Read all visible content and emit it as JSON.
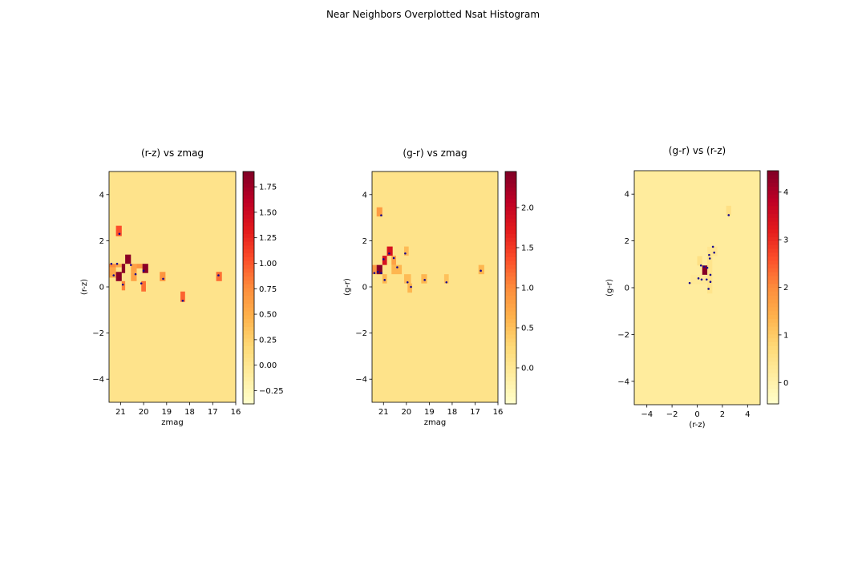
{
  "figure": {
    "suptitle": "Near Neighbors Overplotted Nsat Histogram"
  },
  "colors": {
    "colormap": [
      "#ffffcc",
      "#ffeda0",
      "#fed976",
      "#feb24c",
      "#fd8d3c",
      "#fc4e2a",
      "#e31a1c",
      "#bd0026",
      "#800026"
    ],
    "point": "#1a0a8c",
    "background_fill": "#fde79a"
  },
  "chart_data": [
    {
      "type": "heatmap",
      "title": "(r-z) vs zmag",
      "xlabel": "zmag",
      "ylabel": "(r-z)",
      "xlim": [
        21.5,
        16
      ],
      "ylim": [
        -5,
        5
      ],
      "xticks": [
        "21",
        "20",
        "19",
        "18",
        "17",
        "16"
      ],
      "xtick_values": [
        21,
        20,
        19,
        18,
        17,
        16
      ],
      "yticks": [
        "4",
        "2",
        "0",
        "−2",
        "−4"
      ],
      "ytick_values": [
        4,
        2,
        0,
        -2,
        -4
      ],
      "colorbar": {
        "range": [
          -0.38,
          1.9
        ],
        "ticks": [
          "1.75",
          "1.50",
          "1.25",
          "1.00",
          "0.75",
          "0.50",
          "0.25",
          "0.00",
          "−0.25"
        ],
        "tick_values": [
          1.75,
          1.5,
          1.25,
          1.0,
          0.75,
          0.5,
          0.25,
          0.0,
          -0.25
        ]
      },
      "background_value": 0.05,
      "cells": [
        {
          "x0": 21.2,
          "x1": 20.95,
          "y0": 2.2,
          "y1": 2.65,
          "value": 1.05
        },
        {
          "x0": 21.5,
          "x1": 21.2,
          "y0": 0.85,
          "y1": 1.0,
          "value": 0.75
        },
        {
          "x0": 21.5,
          "x1": 21.2,
          "y0": 0.4,
          "y1": 0.85,
          "value": 0.55
        },
        {
          "x0": 21.2,
          "x1": 20.95,
          "y0": 0.85,
          "y1": 1.0,
          "value": 0.55
        },
        {
          "x0": 21.2,
          "x1": 20.95,
          "y0": 0.25,
          "y1": 0.65,
          "value": 1.85
        },
        {
          "x0": 20.95,
          "x1": 20.8,
          "y0": 0.6,
          "y1": 1.0,
          "value": 1.85
        },
        {
          "x0": 20.95,
          "x1": 20.8,
          "y0": -0.15,
          "y1": 0.25,
          "value": 0.8
        },
        {
          "x0": 20.8,
          "x1": 20.55,
          "y0": 1.0,
          "y1": 1.4,
          "value": 1.85
        },
        {
          "x0": 20.55,
          "x1": 20.3,
          "y0": 0.65,
          "y1": 1.0,
          "value": 0.6
        },
        {
          "x0": 20.55,
          "x1": 20.3,
          "y0": 0.25,
          "y1": 0.65,
          "value": 0.6
        },
        {
          "x0": 20.3,
          "x1": 20.05,
          "y0": 0.8,
          "y1": 1.0,
          "value": 0.7
        },
        {
          "x0": 20.05,
          "x1": 19.8,
          "y0": 0.6,
          "y1": 1.0,
          "value": 1.85
        },
        {
          "x0": 20.1,
          "x1": 19.9,
          "y0": -0.2,
          "y1": 0.25,
          "value": 0.9
        },
        {
          "x0": 19.3,
          "x1": 19.05,
          "y0": 0.25,
          "y1": 0.65,
          "value": 0.7
        },
        {
          "x0": 18.4,
          "x1": 18.2,
          "y0": -0.65,
          "y1": -0.2,
          "value": 0.95
        },
        {
          "x0": 16.85,
          "x1": 16.6,
          "y0": 0.25,
          "y1": 0.65,
          "value": 0.9
        }
      ],
      "points": [
        {
          "x": 21.4,
          "y": 1.0
        },
        {
          "x": 21.15,
          "y": 1.0
        },
        {
          "x": 21.05,
          "y": 2.3
        },
        {
          "x": 21.3,
          "y": 0.5
        },
        {
          "x": 20.9,
          "y": 0.1
        },
        {
          "x": 20.55,
          "y": 0.95
        },
        {
          "x": 20.35,
          "y": 0.55
        },
        {
          "x": 20.0,
          "y": 0.7
        },
        {
          "x": 20.1,
          "y": 0.15
        },
        {
          "x": 19.15,
          "y": 0.35
        },
        {
          "x": 18.3,
          "y": -0.6
        },
        {
          "x": 16.75,
          "y": 0.5
        }
      ]
    },
    {
      "type": "heatmap",
      "title": "(g-r) vs zmag",
      "xlabel": "zmag",
      "ylabel": "(g-r)",
      "xlim": [
        21.5,
        16
      ],
      "ylim": [
        -5,
        5
      ],
      "xticks": [
        "21",
        "20",
        "19",
        "18",
        "17",
        "16"
      ],
      "xtick_values": [
        21,
        20,
        19,
        18,
        17,
        16
      ],
      "yticks": [
        "4",
        "2",
        "0",
        "−2",
        "−4"
      ],
      "ytick_values": [
        4,
        2,
        0,
        -2,
        -4
      ],
      "colorbar": {
        "range": [
          -0.45,
          2.45
        ],
        "ticks": [
          "2.0",
          "1.5",
          "1.0",
          "0.5",
          "0.0"
        ],
        "tick_values": [
          2.0,
          1.5,
          1.0,
          0.5,
          0.0
        ]
      },
      "background_value": 0.1,
      "cells": [
        {
          "x0": 21.3,
          "x1": 21.05,
          "y0": 3.05,
          "y1": 3.45,
          "value": 0.85
        },
        {
          "x0": 21.5,
          "x1": 21.3,
          "y0": 0.55,
          "y1": 0.95,
          "value": 0.9
        },
        {
          "x0": 21.3,
          "x1": 21.05,
          "y0": 0.55,
          "y1": 0.95,
          "value": 2.4
        },
        {
          "x0": 21.05,
          "x1": 20.85,
          "y0": 0.95,
          "y1": 1.35,
          "value": 1.85
        },
        {
          "x0": 21.05,
          "x1": 20.85,
          "y0": 0.15,
          "y1": 0.55,
          "value": 0.6
        },
        {
          "x0": 20.85,
          "x1": 20.6,
          "y0": 1.35,
          "y1": 1.75,
          "value": 1.85
        },
        {
          "x0": 20.65,
          "x1": 20.45,
          "y0": 0.95,
          "y1": 1.35,
          "value": 0.8
        },
        {
          "x0": 20.65,
          "x1": 20.2,
          "y0": 0.55,
          "y1": 0.95,
          "value": 0.6
        },
        {
          "x0": 20.1,
          "x1": 19.9,
          "y0": 1.35,
          "y1": 1.75,
          "value": 0.55
        },
        {
          "x0": 20.1,
          "x1": 19.8,
          "y0": 0.15,
          "y1": 0.55,
          "value": 0.55
        },
        {
          "x0": 19.95,
          "x1": 19.75,
          "y0": -0.25,
          "y1": 0.15,
          "value": 0.6
        },
        {
          "x0": 19.35,
          "x1": 19.1,
          "y0": 0.15,
          "y1": 0.55,
          "value": 0.6
        },
        {
          "x0": 18.35,
          "x1": 18.15,
          "y0": 0.15,
          "y1": 0.55,
          "value": 0.5
        },
        {
          "x0": 16.85,
          "x1": 16.6,
          "y0": 0.55,
          "y1": 0.95,
          "value": 0.6
        }
      ],
      "points": [
        {
          "x": 21.1,
          "y": 3.1
        },
        {
          "x": 21.4,
          "y": 0.6
        },
        {
          "x": 21.25,
          "y": 0.65
        },
        {
          "x": 21.1,
          "y": 0.6
        },
        {
          "x": 21.0,
          "y": 1.2
        },
        {
          "x": 20.95,
          "y": 0.3
        },
        {
          "x": 20.75,
          "y": 1.45
        },
        {
          "x": 20.55,
          "y": 1.25
        },
        {
          "x": 20.4,
          "y": 0.85
        },
        {
          "x": 20.05,
          "y": 1.45
        },
        {
          "x": 19.95,
          "y": 0.2
        },
        {
          "x": 19.8,
          "y": 0.0
        },
        {
          "x": 19.2,
          "y": 0.3
        },
        {
          "x": 18.25,
          "y": 0.2
        },
        {
          "x": 16.75,
          "y": 0.7
        }
      ]
    },
    {
      "type": "heatmap",
      "title": "(g-r) vs (r-z)",
      "xlabel": "(r-z)",
      "ylabel": "(g-r)",
      "xlim": [
        -5,
        5
      ],
      "ylim": [
        -5,
        5
      ],
      "xticks": [
        "−4",
        "−2",
        "0",
        "2",
        "4"
      ],
      "xtick_values": [
        -4,
        -2,
        0,
        2,
        4
      ],
      "yticks": [
        "4",
        "2",
        "0",
        "−2",
        "−4"
      ],
      "ytick_values": [
        4,
        2,
        0,
        -2,
        -4
      ],
      "colorbar": {
        "range": [
          -0.45,
          4.45
        ],
        "ticks": [
          "4",
          "3",
          "2",
          "1",
          "0"
        ],
        "tick_values": [
          4,
          3,
          2,
          1,
          0
        ]
      },
      "background_value": 0.2,
      "cells": [
        {
          "x0": 2.3,
          "x1": 2.7,
          "y0": 3.1,
          "y1": 3.5,
          "value": 0.55
        },
        {
          "x0": 0.8,
          "x1": 1.6,
          "y0": 1.35,
          "y1": 1.75,
          "value": 0.4
        },
        {
          "x0": 0.8,
          "x1": 1.2,
          "y0": -0.25,
          "y1": 1.35,
          "value": 0.45
        },
        {
          "x0": 0.0,
          "x1": 0.4,
          "y0": 0.95,
          "y1": 1.35,
          "value": 0.55
        },
        {
          "x0": 0.4,
          "x1": 0.8,
          "y0": 0.55,
          "y1": 0.95,
          "value": 4.4
        },
        {
          "x0": -0.5,
          "x1": 0.8,
          "y0": 0.15,
          "y1": 0.55,
          "value": 0.3
        }
      ],
      "points": [
        {
          "x": 2.5,
          "y": 3.1
        },
        {
          "x": 1.25,
          "y": 1.75
        },
        {
          "x": 1.35,
          "y": 1.5
        },
        {
          "x": 0.95,
          "y": 1.4
        },
        {
          "x": 1.0,
          "y": 1.25
        },
        {
          "x": 0.3,
          "y": 0.95
        },
        {
          "x": 0.55,
          "y": 0.9
        },
        {
          "x": 0.8,
          "y": 0.85
        },
        {
          "x": 1.05,
          "y": 0.55
        },
        {
          "x": 1.05,
          "y": 0.25
        },
        {
          "x": 0.75,
          "y": 0.35
        },
        {
          "x": 0.35,
          "y": 0.35
        },
        {
          "x": 0.1,
          "y": 0.4
        },
        {
          "x": -0.6,
          "y": 0.2
        },
        {
          "x": 0.9,
          "y": -0.05
        }
      ]
    }
  ]
}
